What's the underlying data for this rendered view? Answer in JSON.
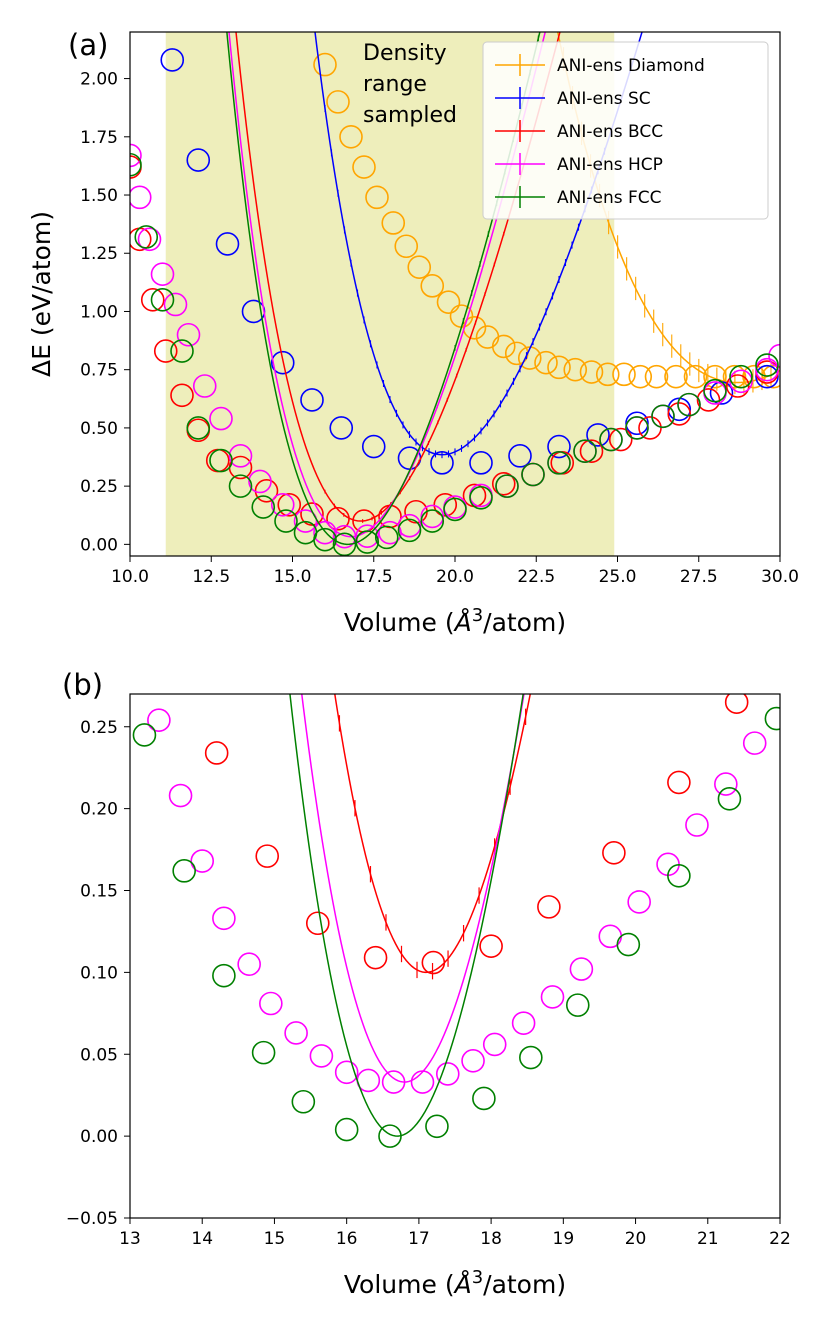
{
  "chart_data": [
    {
      "panel_label": "(a)",
      "type": "line",
      "xlabel_prefix": "Volume (",
      "xlabel_unit": "Å",
      "xlabel_exp": "3",
      "xlabel_suffix": "/atom)",
      "ylabel": "ΔE (eV/atom)",
      "xlim": [
        10.0,
        30.0
      ],
      "ylim": [
        -0.05,
        2.2
      ],
      "xticks": [
        10.0,
        12.5,
        15.0,
        17.5,
        20.0,
        22.5,
        25.0,
        27.5,
        30.0
      ],
      "xtick_labels": [
        "10.0",
        "12.5",
        "15.0",
        "17.5",
        "20.0",
        "22.5",
        "25.0",
        "27.5",
        "30.0"
      ],
      "yticks": [
        0.0,
        0.25,
        0.5,
        0.75,
        1.0,
        1.25,
        1.5,
        1.75,
        2.0
      ],
      "ytick_labels": [
        "0.00",
        "0.25",
        "0.50",
        "0.75",
        "1.00",
        "1.25",
        "1.50",
        "1.75",
        "2.00"
      ],
      "shaded_region": {
        "x0": 11.1,
        "x1": 24.9,
        "color": "#eeeebb"
      },
      "annotation": [
        "Density",
        "range",
        "sampled"
      ],
      "legend": {
        "position": "top-right",
        "entries": [
          "ANI-ens Diamond",
          "ANI-ens SC",
          "ANI-ens BCC",
          "ANI-ens HCP",
          "ANI-ens FCC"
        ]
      },
      "series": [
        {
          "name": "ANI-ens Diamond",
          "color": "#ffa500",
          "fit": {
            "E0": 0.695,
            "V0": 28.7,
            "B": 1.9,
            "Bp": 4.5,
            "x": [
              14.9,
              30.0
            ]
          },
          "points_x": [
            16.0,
            16.4,
            16.8,
            17.2,
            17.6,
            18.1,
            18.5,
            18.9,
            19.3,
            19.8,
            20.2,
            20.6,
            21.0,
            21.5,
            21.9,
            22.3,
            22.8,
            23.2,
            23.7,
            24.2,
            24.7,
            25.2,
            25.7,
            26.2,
            26.8,
            27.4,
            28.0,
            28.6,
            29.2,
            29.8
          ],
          "points_y": [
            2.06,
            1.9,
            1.75,
            1.62,
            1.49,
            1.38,
            1.28,
            1.19,
            1.11,
            1.04,
            0.98,
            0.93,
            0.89,
            0.85,
            0.82,
            0.8,
            0.78,
            0.76,
            0.75,
            0.74,
            0.73,
            0.73,
            0.72,
            0.72,
            0.72,
            0.72,
            0.72,
            0.72,
            0.72,
            0.72
          ],
          "error_bars": {
            "x0": 16.4,
            "x1": 30.0,
            "n": 50,
            "err": 0.05
          }
        },
        {
          "name": "ANI-ens SC",
          "color": "#0000ff",
          "fit": {
            "E0": 0.385,
            "V0": 19.6,
            "B": 3.1,
            "Bp": 4.5,
            "x": [
              11.0,
              30.0
            ]
          },
          "points_x": [
            11.3,
            12.1,
            13.0,
            13.8,
            14.7,
            15.6,
            16.5,
            17.5,
            18.6,
            19.6,
            20.8,
            22.0,
            23.2,
            24.4,
            25.6,
            26.9,
            28.2,
            29.6
          ],
          "points_y": [
            2.08,
            1.65,
            1.29,
            1.0,
            0.78,
            0.62,
            0.5,
            0.42,
            0.37,
            0.35,
            0.35,
            0.38,
            0.42,
            0.47,
            0.52,
            0.58,
            0.65,
            0.72
          ],
          "error_bars": {
            "x0": 16.0,
            "x1": 24.8,
            "n": 45,
            "err": 0.015
          }
        },
        {
          "name": "ANI-ens BCC",
          "color": "#ff0000",
          "fit": {
            "E0": 0.1,
            "V0": 17.1,
            "B": 3.2,
            "Bp": 4.0,
            "x": [
              10.0,
              30.0
            ]
          },
          "points_x": [
            10.0,
            10.3,
            10.7,
            11.1,
            11.6,
            12.1,
            12.7,
            13.4,
            14.2,
            14.9,
            15.6,
            16.4,
            17.2,
            18.0,
            18.8,
            19.7,
            20.6,
            21.5,
            22.4,
            23.3,
            24.2,
            25.1,
            26.0,
            26.9,
            27.8,
            28.7,
            29.6
          ],
          "points_y": [
            1.62,
            1.31,
            1.05,
            0.83,
            0.64,
            0.49,
            0.36,
            0.33,
            0.23,
            0.17,
            0.13,
            0.11,
            0.1,
            0.12,
            0.14,
            0.17,
            0.21,
            0.26,
            0.3,
            0.35,
            0.4,
            0.45,
            0.5,
            0.56,
            0.62,
            0.68,
            0.74
          ],
          "error_bars": {
            "x0": 16.0,
            "x1": 21.5,
            "n": 20,
            "err": 0.008
          }
        },
        {
          "name": "ANI-ens HCP",
          "color": "#ff00ff",
          "fit": {
            "E0": 0.033,
            "V0": 16.8,
            "B": 3.4,
            "Bp": 4.0,
            "x": [
              10.0,
              30.0
            ]
          },
          "points_x": [
            10.0,
            10.3,
            10.6,
            11.0,
            11.4,
            11.8,
            12.3,
            12.8,
            13.4,
            14.0,
            14.7,
            15.4,
            16.0,
            16.6,
            17.3,
            18.0,
            18.6,
            19.3,
            20.0,
            20.8,
            21.6,
            22.4,
            23.2,
            24.0,
            24.8,
            25.6,
            26.4,
            27.2,
            28.0,
            28.8,
            29.6,
            30.0
          ],
          "points_y": [
            1.67,
            1.49,
            1.31,
            1.16,
            1.03,
            0.9,
            0.68,
            0.54,
            0.38,
            0.27,
            0.17,
            0.1,
            0.05,
            0.033,
            0.035,
            0.05,
            0.08,
            0.12,
            0.16,
            0.21,
            0.25,
            0.3,
            0.35,
            0.4,
            0.45,
            0.5,
            0.55,
            0.6,
            0.65,
            0.7,
            0.75,
            0.81
          ],
          "error_bars": {
            "x0": 19.0,
            "x1": 21.5,
            "n": 12,
            "err": 0.006
          }
        },
        {
          "name": "ANI-ens FCC",
          "color": "#008000",
          "fit": {
            "E0": 0.0,
            "V0": 16.7,
            "B": 3.5,
            "Bp": 4.0,
            "x": [
              10.0,
              30.0
            ]
          },
          "points_x": [
            10.0,
            10.5,
            11.0,
            11.6,
            12.1,
            12.8,
            13.4,
            14.1,
            14.8,
            15.4,
            16.0,
            16.6,
            17.3,
            17.9,
            18.6,
            19.3,
            20.0,
            20.8,
            21.6,
            22.4,
            23.2,
            24.0,
            24.8,
            25.6,
            26.4,
            27.2,
            28.0,
            28.8,
            29.6
          ],
          "points_y": [
            1.63,
            1.32,
            1.05,
            0.83,
            0.5,
            0.36,
            0.25,
            0.16,
            0.1,
            0.05,
            0.02,
            0.0,
            0.01,
            0.03,
            0.06,
            0.1,
            0.15,
            0.2,
            0.25,
            0.3,
            0.35,
            0.4,
            0.45,
            0.5,
            0.55,
            0.6,
            0.66,
            0.72,
            0.77
          ],
          "error_bars": {
            "x0": 20.0,
            "x1": 30.0,
            "n": 40,
            "err": 0.012
          }
        }
      ]
    },
    {
      "panel_label": "(b)",
      "type": "line",
      "xlabel_prefix": "Volume (",
      "xlabel_unit": "Å",
      "xlabel_exp": "3",
      "xlabel_suffix": "/atom)",
      "xlim": [
        13,
        22
      ],
      "ylim": [
        -0.05,
        0.27
      ],
      "xticks": [
        13,
        14,
        15,
        16,
        17,
        18,
        19,
        20,
        21,
        22
      ],
      "xtick_labels": [
        "13",
        "14",
        "15",
        "16",
        "17",
        "18",
        "19",
        "20",
        "21",
        "22"
      ],
      "yticks": [
        -0.05,
        0.0,
        0.05,
        0.1,
        0.15,
        0.2,
        0.25
      ],
      "ytick_labels": [
        "−0.05",
        "0.00",
        "0.05",
        "0.10",
        "0.15",
        "0.20",
        "0.25"
      ],
      "series": [
        {
          "name": "ANI-ens BCC",
          "color": "#ff0000",
          "fit": {
            "E0": 0.1,
            "V0": 17.1,
            "B": 3.2,
            "Bp": 4.0,
            "x": [
              13.0,
              22.0
            ]
          },
          "points_x": [
            14.2,
            14.9,
            15.6,
            16.4,
            17.2,
            18.0,
            18.8,
            19.7,
            20.6,
            21.4
          ],
          "points_y": [
            0.234,
            0.171,
            0.13,
            0.109,
            0.106,
            0.116,
            0.14,
            0.173,
            0.216,
            0.265
          ],
          "error_bars": {
            "x0": 15.9,
            "x1": 21.7,
            "n": 28,
            "err": 0.005
          }
        },
        {
          "name": "ANI-ens HCP",
          "color": "#ff00ff",
          "fit": {
            "E0": 0.033,
            "V0": 16.8,
            "B": 3.4,
            "Bp": 4.0,
            "x": [
              13.0,
              22.0
            ]
          },
          "points_x": [
            13.4,
            13.7,
            14.0,
            14.3,
            14.65,
            14.95,
            15.3,
            15.65,
            16.0,
            16.3,
            16.65,
            17.05,
            17.4,
            17.75,
            18.05,
            18.45,
            18.85,
            19.25,
            19.65,
            20.05,
            20.45,
            20.85,
            21.25,
            21.65
          ],
          "points_y": [
            0.254,
            0.208,
            0.168,
            0.133,
            0.105,
            0.081,
            0.063,
            0.049,
            0.039,
            0.034,
            0.033,
            0.033,
            0.038,
            0.046,
            0.056,
            0.069,
            0.085,
            0.102,
            0.122,
            0.143,
            0.166,
            0.19,
            0.215,
            0.24
          ],
          "error_bars": {
            "x0": 19.3,
            "x1": 21.9,
            "n": 10,
            "err": 0.004
          }
        },
        {
          "name": "ANI-ens FCC",
          "color": "#008000",
          "fit": {
            "E0": 0.0,
            "V0": 16.7,
            "B": 3.5,
            "Bp": 4.0,
            "x": [
              13.0,
              22.0
            ]
          },
          "points_x": [
            13.2,
            13.75,
            14.3,
            14.85,
            15.4,
            16.0,
            16.6,
            17.25,
            17.9,
            18.55,
            19.2,
            19.9,
            20.6,
            21.3,
            21.95
          ],
          "points_y": [
            0.245,
            0.162,
            0.098,
            0.051,
            0.021,
            0.004,
            0.0,
            0.006,
            0.023,
            0.048,
            0.08,
            0.117,
            0.159,
            0.206,
            0.255
          ],
          "error_bars": {
            "x0": 19.0,
            "x1": 22.0,
            "n": 16,
            "err": 0.016
          }
        }
      ]
    }
  ]
}
